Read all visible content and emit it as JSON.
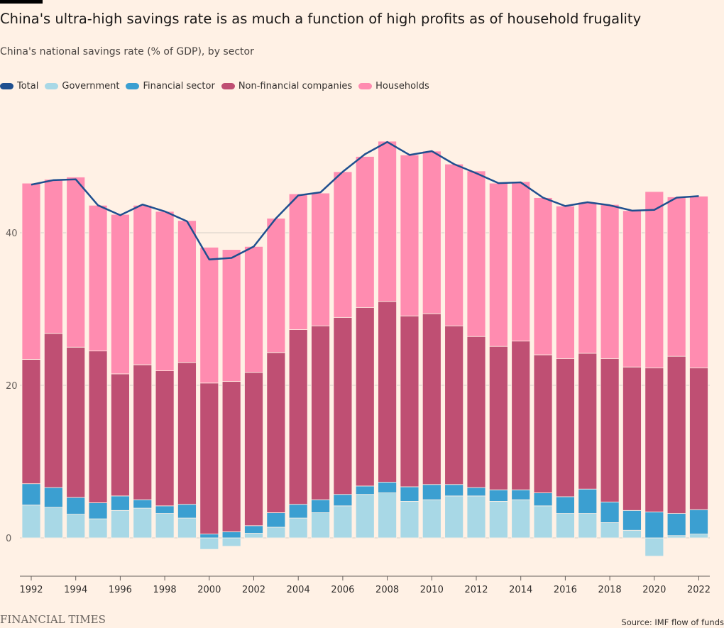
{
  "header": {
    "title": "China's ultra-high savings rate is as much a function of high profits as of household frugality",
    "subtitle": "China's national savings rate (% of GDP), by sector"
  },
  "legend": [
    {
      "label": "Total",
      "color": "#1f4f8f"
    },
    {
      "label": "Government",
      "color": "#a8d8e6"
    },
    {
      "label": "Financial sector",
      "color": "#3b9fd1"
    },
    {
      "label": "Non-financial companies",
      "color": "#bf4f73"
    },
    {
      "label": "Households",
      "color": "#ff8cb0"
    }
  ],
  "footer": {
    "brand": "FINANCIAL TIMES",
    "source": "Source: IMF flow of funds"
  },
  "chart_data": {
    "type": "bar",
    "stacked": true,
    "title": "China's ultra-high savings rate is as much a function of high profits as of household frugality",
    "subtitle": "China's national savings rate (% of GDP), by sector",
    "xlabel": "",
    "ylabel": "",
    "ylim": [
      -5,
      52
    ],
    "yticks": [
      0,
      20,
      40
    ],
    "grid": true,
    "legend_position": "top-left",
    "categories": [
      1992,
      1993,
      1994,
      1995,
      1996,
      1997,
      1998,
      1999,
      2000,
      2001,
      2002,
      2003,
      2004,
      2005,
      2006,
      2007,
      2008,
      2009,
      2010,
      2011,
      2012,
      2013,
      2014,
      2015,
      2016,
      2017,
      2018,
      2019,
      2020,
      2021,
      2022
    ],
    "xtick_labels": [
      "1992",
      "1994",
      "1996",
      "1998",
      "2000",
      "2002",
      "2004",
      "2006",
      "2008",
      "2010",
      "2012",
      "2014",
      "2016",
      "2018",
      "2020",
      "2022"
    ],
    "series": [
      {
        "name": "Government",
        "color": "#a8d8e6",
        "values": [
          4.3,
          4.0,
          3.1,
          2.5,
          3.6,
          3.9,
          3.2,
          2.6,
          -1.5,
          -1.1,
          0.6,
          1.4,
          2.6,
          3.3,
          4.2,
          5.7,
          5.9,
          4.8,
          5.0,
          5.5,
          5.5,
          4.8,
          5.0,
          4.2,
          3.2,
          3.2,
          2.0,
          1.0,
          -2.4,
          0.3,
          0.5
        ]
      },
      {
        "name": "Financial sector",
        "color": "#3b9fd1",
        "values": [
          2.8,
          2.6,
          2.2,
          2.1,
          1.9,
          1.1,
          1.0,
          1.8,
          0.5,
          0.8,
          1.0,
          1.9,
          1.8,
          1.7,
          1.5,
          1.1,
          1.4,
          1.9,
          2.0,
          1.5,
          1.1,
          1.5,
          1.3,
          1.7,
          2.2,
          3.2,
          2.7,
          2.6,
          3.4,
          2.9,
          3.2
        ]
      },
      {
        "name": "Non-financial companies",
        "color": "#bf4f73",
        "values": [
          16.3,
          20.2,
          19.7,
          19.9,
          16.0,
          17.7,
          17.7,
          18.6,
          19.8,
          19.7,
          20.1,
          21.0,
          22.9,
          22.8,
          23.2,
          23.4,
          23.7,
          22.4,
          22.4,
          20.8,
          19.8,
          18.8,
          19.5,
          18.1,
          18.1,
          17.8,
          18.8,
          18.8,
          18.9,
          20.6,
          18.6
        ]
      },
      {
        "name": "Households",
        "color": "#ff8cb0",
        "values": [
          23.1,
          20.2,
          22.3,
          19.1,
          20.9,
          20.9,
          20.9,
          18.6,
          17.8,
          17.3,
          16.5,
          17.6,
          17.8,
          17.4,
          19.1,
          19.8,
          21.0,
          21.1,
          21.3,
          21.2,
          21.7,
          21.4,
          20.9,
          20.6,
          20.0,
          19.8,
          20.2,
          20.5,
          23.1,
          20.9,
          22.5
        ]
      },
      {
        "name": "Total",
        "color": "#1f4f8f",
        "type": "line",
        "values": [
          46.3,
          46.9,
          47.0,
          43.6,
          42.3,
          43.7,
          42.8,
          41.5,
          36.5,
          36.7,
          38.2,
          41.9,
          44.9,
          45.3,
          48.0,
          50.3,
          51.9,
          50.2,
          50.7,
          49.0,
          47.8,
          46.5,
          46.6,
          44.6,
          43.5,
          44.0,
          43.6,
          42.9,
          43.0,
          44.6,
          44.8
        ]
      }
    ]
  }
}
